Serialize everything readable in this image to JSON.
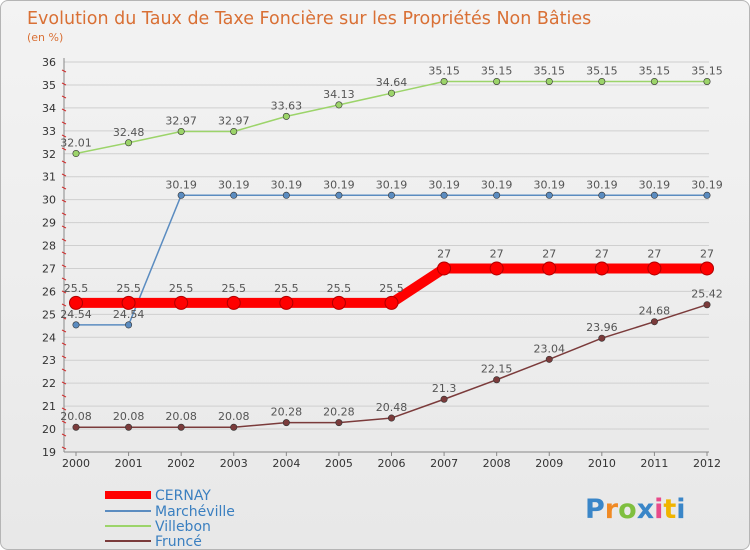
{
  "chart_data": {
    "type": "line",
    "title": "Evolution du Taux de Taxe Foncière sur les Propriétés Non Bâties",
    "subtitle": "(en %)",
    "xlabel": "",
    "ylabel": "",
    "ylim": [
      19,
      36
    ],
    "yticks": [
      "19",
      "20",
      "21",
      "22",
      "23",
      "24",
      "25",
      "26",
      "27",
      "28",
      "29",
      "30",
      "31",
      "32",
      "33",
      "34",
      "35",
      "36"
    ],
    "categories": [
      "2000",
      "2001",
      "2002",
      "2003",
      "2004",
      "2005",
      "2006",
      "2007",
      "2008",
      "2009",
      "2010",
      "2011",
      "2012"
    ],
    "grid": "horizontal",
    "legend_position": "bottom-left",
    "series": [
      {
        "name": "CERNAY",
        "color": "#ff0000",
        "values": [
          25.5,
          25.5,
          25.5,
          25.5,
          25.5,
          25.5,
          25.5,
          27,
          27,
          27,
          27,
          27,
          27
        ],
        "labels": [
          "25.5",
          "25.5",
          "25.5",
          "25.5",
          "25.5",
          "25.5",
          "25.5",
          "27",
          "27",
          "27",
          "27",
          "27",
          "27"
        ]
      },
      {
        "name": "Marchéville",
        "color": "#5b8cc0",
        "values": [
          24.54,
          24.54,
          30.19,
          30.19,
          30.19,
          30.19,
          30.19,
          30.19,
          30.19,
          30.19,
          30.19,
          30.19,
          30.19
        ],
        "labels": [
          "24.54",
          "24.54",
          "30.19",
          "30.19",
          "30.19",
          "30.19",
          "30.19",
          "30.19",
          "30.19",
          "30.19",
          "30.19",
          "30.19",
          "30.19"
        ]
      },
      {
        "name": "Villebon",
        "color": "#9cd46a",
        "values": [
          32.01,
          32.48,
          32.97,
          32.97,
          33.63,
          34.13,
          34.64,
          35.15,
          35.15,
          35.15,
          35.15,
          35.15,
          35.15
        ],
        "labels": [
          "32.01",
          "32.48",
          "32.97",
          "32.97",
          "33.63",
          "34.13",
          "34.64",
          "35.15",
          "35.15",
          "35.15",
          "35.15",
          "35.15",
          "35.15"
        ]
      },
      {
        "name": "Fruncé",
        "color": "#7b3b3b",
        "values": [
          20.08,
          20.08,
          20.08,
          20.08,
          20.28,
          20.28,
          20.48,
          21.3,
          22.15,
          23.04,
          23.96,
          24.68,
          25.42
        ],
        "labels": [
          "20.08",
          "20.08",
          "20.08",
          "20.08",
          "20.28",
          "20.28",
          "20.48",
          "21.3",
          "22.15",
          "23.04",
          "23.96",
          "24.68",
          "25.42"
        ]
      }
    ]
  },
  "logo": {
    "text": "Proxiti",
    "letter_colors": [
      "#3a86c8",
      "#f08a24",
      "#7fbf3f",
      "#3a86c8",
      "#e84a8a",
      "#f0b400",
      "#3a86c8"
    ]
  }
}
